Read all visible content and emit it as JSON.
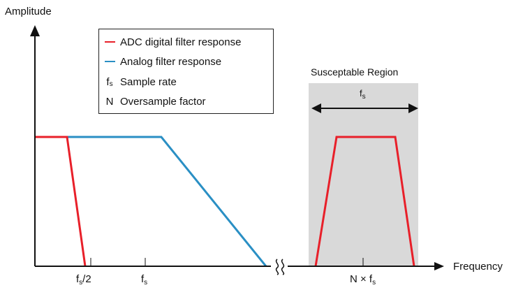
{
  "axes": {
    "y_label": "Amplitude",
    "x_label": "Frequency"
  },
  "legend": {
    "items": [
      {
        "key_type": "swatch",
        "color": "#e8202a",
        "text": "ADC digital filter response"
      },
      {
        "key_type": "swatch",
        "color": "#2a8fc4",
        "text": "Analog filter response"
      },
      {
        "key_type": "symbol",
        "symbol": "f",
        "subscript": "s",
        "text": "Sample rate"
      },
      {
        "key_type": "symbol",
        "symbol": "N",
        "subscript": "",
        "text": "Oversample factor"
      }
    ]
  },
  "region": {
    "title": "Susceptable Region",
    "width_symbol": "f",
    "width_subscript": "s",
    "fill": "#d9d9d9"
  },
  "ticks": {
    "half_fs": {
      "main": "f",
      "sub": "s",
      "tail": "/2"
    },
    "fs": {
      "main": "f",
      "sub": "s"
    },
    "n_fs": {
      "main": "N × f",
      "sub": "s"
    }
  },
  "colors": {
    "digital": "#e8202a",
    "analog": "#2a8fc4",
    "axis": "#111111"
  }
}
